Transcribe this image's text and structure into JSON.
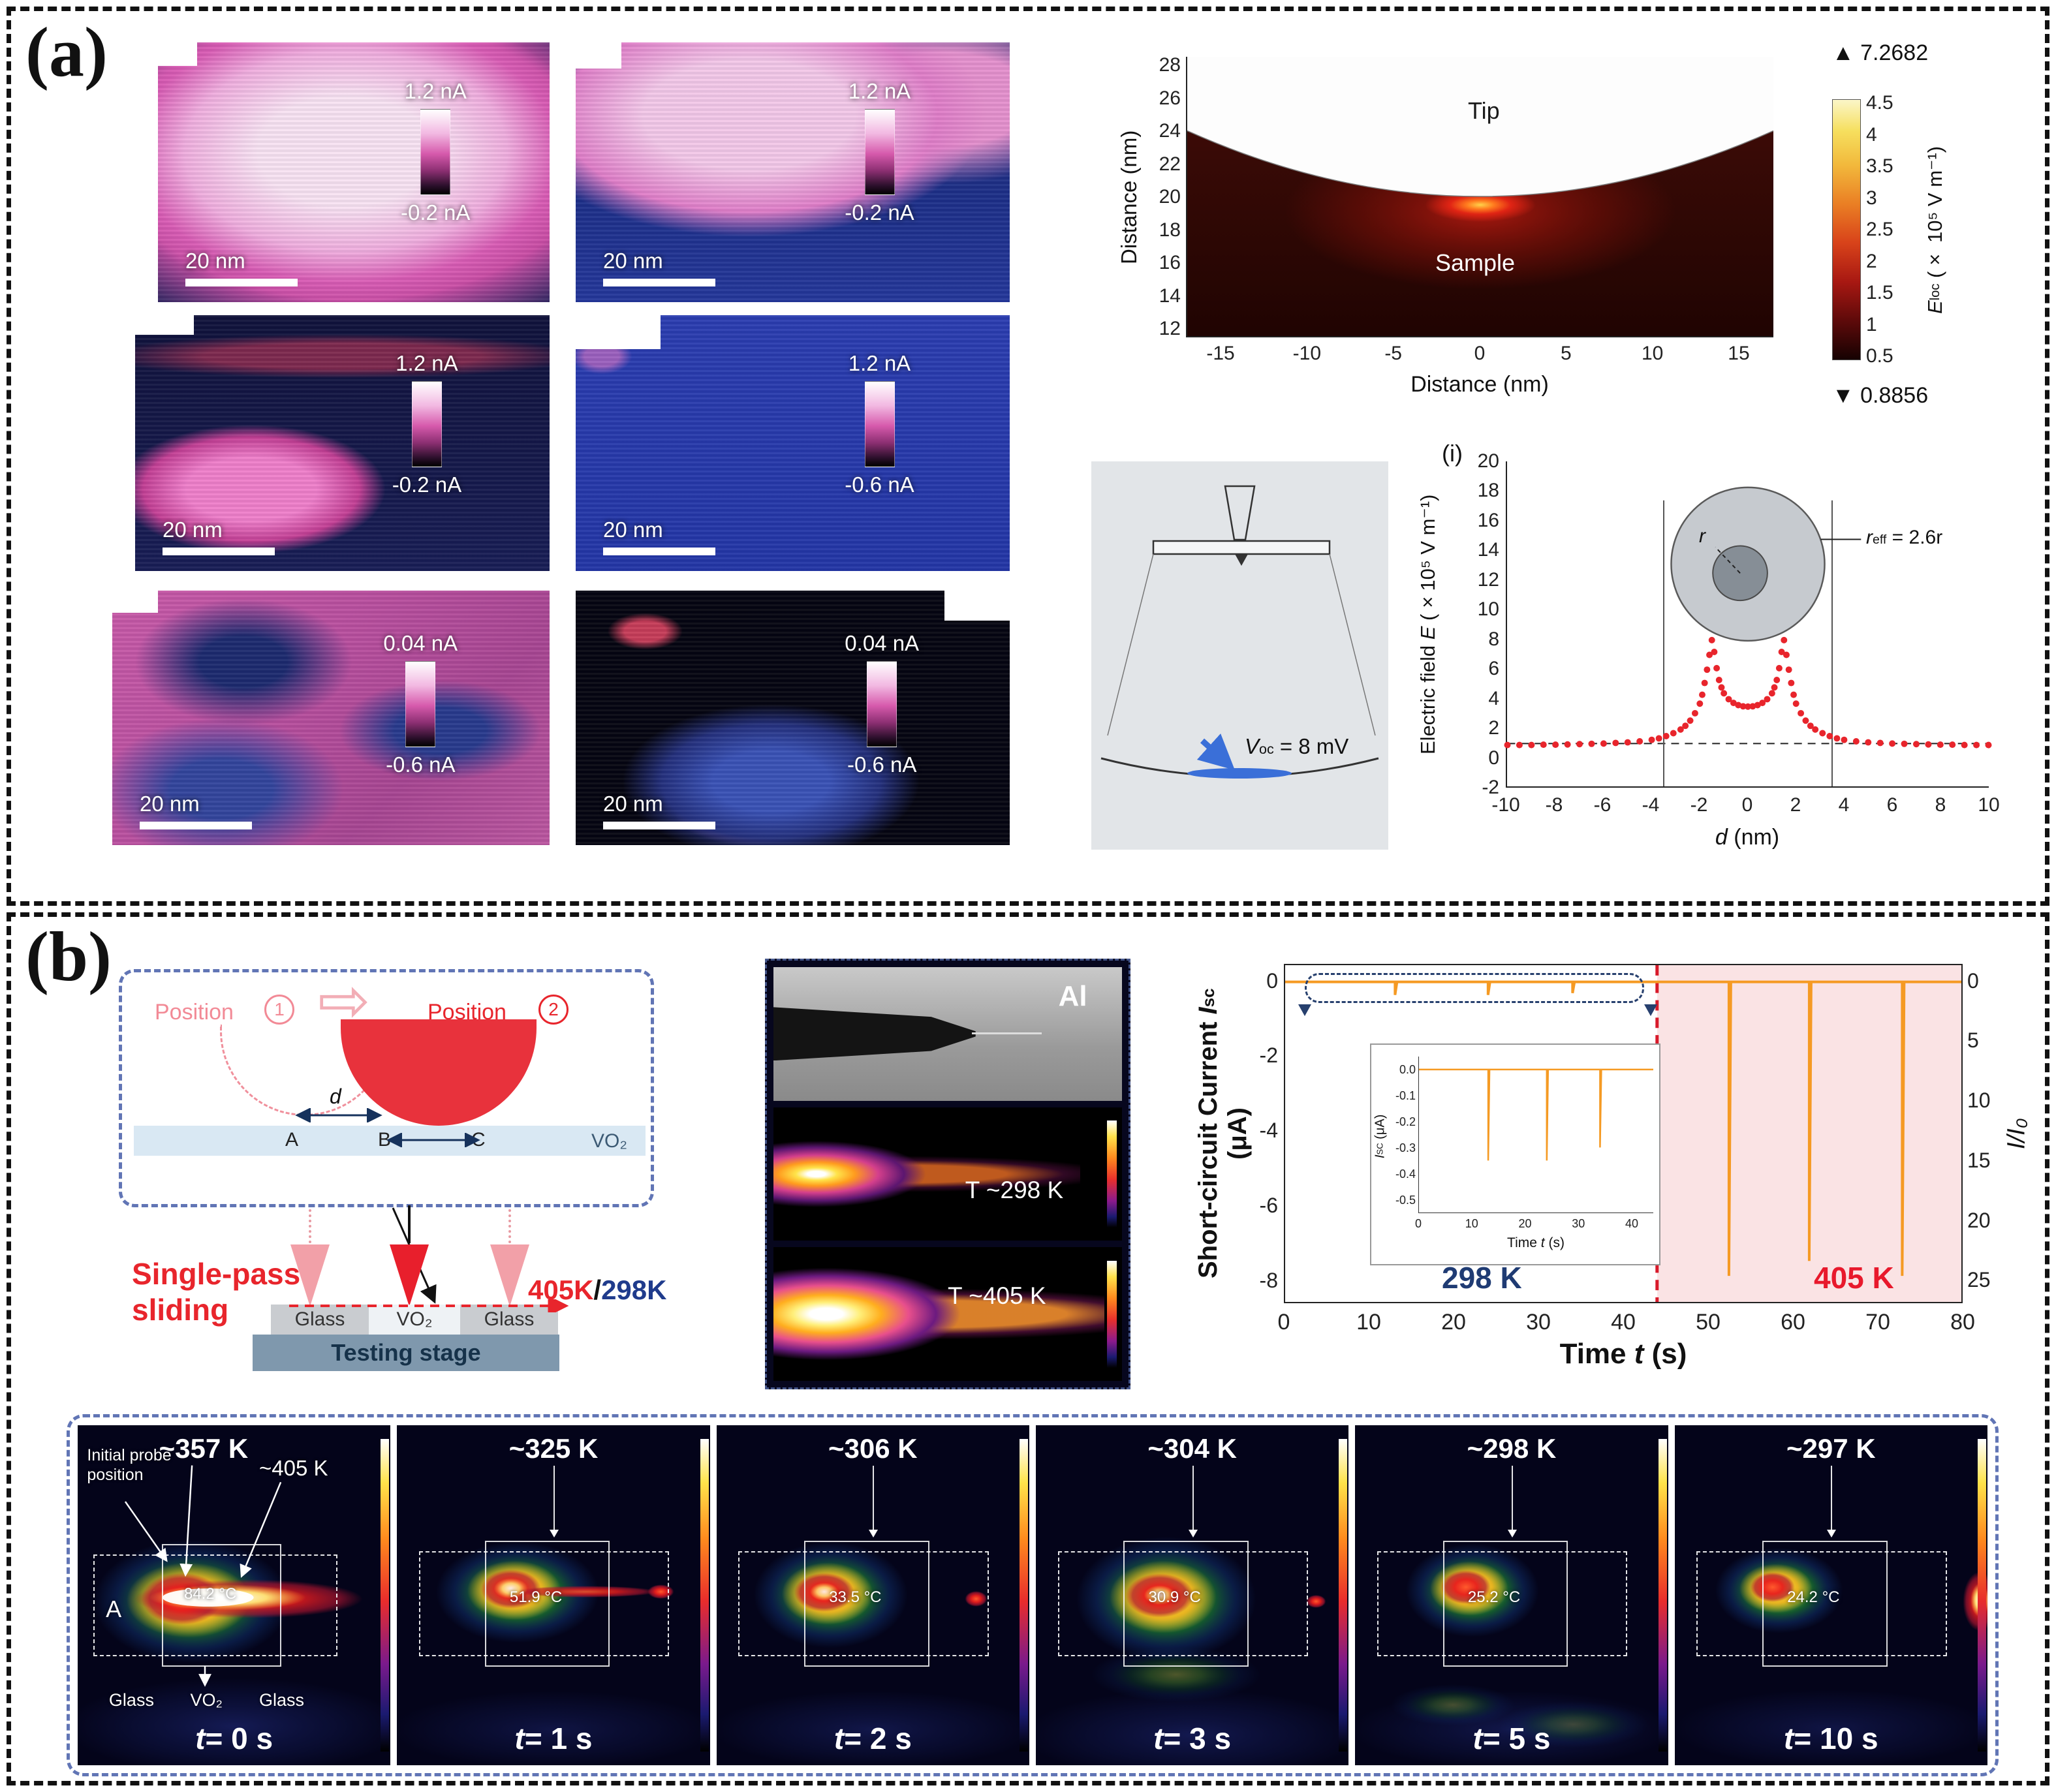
{
  "figure": {
    "panel_a_label": "(a)",
    "panel_b_label": "(b)"
  },
  "panel_a": {
    "maps": [
      {
        "max": "1.2 nA",
        "min": "-0.2 nA",
        "scalebar": "20 nm"
      },
      {
        "max": "1.2 nA",
        "min": "-0.2 nA",
        "scalebar": "20 nm"
      },
      {
        "max": "1.2 nA",
        "min": "-0.2 nA",
        "scalebar": "20 nm"
      },
      {
        "max": "1.2 nA",
        "min": "-0.6 nA",
        "scalebar": "20 nm"
      },
      {
        "max": "0.04 nA",
        "min": "-0.6 nA",
        "scalebar": "20 nm"
      },
      {
        "max": "0.04 nA",
        "min": "-0.6 nA",
        "scalebar": "20 nm"
      }
    ],
    "simulation": {
      "tip": "Tip",
      "sample": "Sample",
      "xlabel": "Distance (nm)",
      "ylabel": "Distance (nm)",
      "cbar_sym": "E",
      "cbar_sub": "loc",
      "cbar_rest": " (× 10⁵ V m⁻¹)",
      "max_value": "7.2682",
      "min_value": "0.8856"
    },
    "tip_schematic": {
      "v_sym": "V",
      "v_sub": "oc",
      "v_rest": " = 8 mV"
    },
    "efield": {
      "panel_label": "(i)",
      "ylabel_pre": "Electric field ",
      "ylabel_sym": "E",
      "ylabel_post": " (×10⁵ V m⁻¹)",
      "xlabel_sym": "d",
      "xlabel_post": " (nm)",
      "r_label": "r",
      "reff_sym": "r",
      "reff_sub": "eff",
      "reff_rest": " = 2.6r"
    }
  },
  "panel_b": {
    "schematic": {
      "position_label": "Position",
      "pos1": "1",
      "pos2": "2",
      "d_label": "d",
      "pt_a": "A",
      "pt_b": "B",
      "pt_c": "C",
      "film": "VO₂",
      "sliding_1": "Single-pass",
      "sliding_2": "sliding",
      "temp_hot": "405K",
      "temp_sep": "/",
      "temp_cold": "298K",
      "glass_left": "Glass",
      "vo2": "VO₂",
      "glass_right": "Glass",
      "stage": "Testing stage"
    },
    "thermal": {
      "al": "Al",
      "t_cold": "T ~298 K",
      "t_hot": "T ~405 K"
    },
    "frames": [
      {
        "temp": "~357 K",
        "t_sym": "t",
        "time": "= 0 s",
        "reading": "84.2 °C",
        "probe_note": "Initial probe position",
        "hot_note": "~405 K",
        "pt": "A",
        "glass_left": "Glass",
        "vo2": "VO₂",
        "glass_right": "Glass"
      },
      {
        "temp": "~325 K",
        "t_sym": "t",
        "time": "= 1 s",
        "reading": "51.9 °C"
      },
      {
        "temp": "~306 K",
        "t_sym": "t",
        "time": "= 2 s",
        "reading": "33.5 °C"
      },
      {
        "temp": "~304 K",
        "t_sym": "t",
        "time": "= 3 s",
        "reading": "30.9 °C"
      },
      {
        "temp": "~298 K",
        "t_sym": "t",
        "time": "= 5 s",
        "reading": "25.2 °C"
      },
      {
        "temp": "~297 K",
        "t_sym": "t",
        "time": "= 10 s",
        "reading": "24.2 °C"
      }
    ]
  },
  "chart_data": [
    {
      "id": "tip-field-map",
      "type": "heatmap",
      "xlabel": "Distance (nm)",
      "ylabel": "Distance (nm)",
      "xlim": [
        -17,
        17
      ],
      "ylim": [
        11.5,
        28.5
      ],
      "xticks": [
        -15,
        -10,
        -5,
        0,
        5,
        10,
        15
      ],
      "yticks": [
        28,
        26,
        24,
        22,
        20,
        18,
        16,
        14,
        12
      ],
      "regions": [
        "Tip",
        "Sample"
      ],
      "tip_sample_boundary_nm": 20,
      "hotspot": {
        "x": 0,
        "y": 19.8
      },
      "colorbar": {
        "label": "Eloc (× 10⁵ V m⁻¹)",
        "ticks": [
          4.5,
          4,
          3.5,
          3,
          2.5,
          2,
          1.5,
          1,
          0.5
        ],
        "max": 7.2682,
        "min": 0.8856
      },
      "legend": "off"
    },
    {
      "id": "efield-profile",
      "type": "scatter",
      "panel_label": "(i)",
      "xlabel": "d (nm)",
      "ylabel": "Electric field E (×10⁵ V m⁻¹)",
      "xlim": [
        -10,
        10
      ],
      "ylim": [
        -2,
        20
      ],
      "xticks": [
        -10,
        -8,
        -6,
        -4,
        -2,
        0,
        2,
        4,
        6,
        8,
        10
      ],
      "yticks": [
        20,
        18,
        16,
        14,
        12,
        10,
        8,
        6,
        4,
        2,
        0,
        -2
      ],
      "baseline": 0.9,
      "tip_edges": [
        -3.5,
        3.5
      ],
      "annotation": "reff = 2.6r",
      "marker_color": "#e8252c",
      "points": [
        [
          -10,
          0.8
        ],
        [
          -9.5,
          0.8
        ],
        [
          -9,
          0.8
        ],
        [
          -8.5,
          0.82
        ],
        [
          -8,
          0.82
        ],
        [
          -7.5,
          0.84
        ],
        [
          -7,
          0.86
        ],
        [
          -6.5,
          0.88
        ],
        [
          -6,
          0.9
        ],
        [
          -5.5,
          0.94
        ],
        [
          -5,
          0.98
        ],
        [
          -4.5,
          1.05
        ],
        [
          -4,
          1.15
        ],
        [
          -3.7,
          1.25
        ],
        [
          -3.4,
          1.4
        ],
        [
          -3.1,
          1.6
        ],
        [
          -2.8,
          1.85
        ],
        [
          -2.6,
          2.1
        ],
        [
          -2.4,
          2.45
        ],
        [
          -2.2,
          2.95
        ],
        [
          -2,
          3.6
        ],
        [
          -1.9,
          4.2
        ],
        [
          -1.8,
          5.0
        ],
        [
          -1.7,
          5.9
        ],
        [
          -1.6,
          6.9
        ],
        [
          -1.5,
          7.9
        ],
        [
          -1.4,
          7.1
        ],
        [
          -1.3,
          6.0
        ],
        [
          -1.2,
          5.2
        ],
        [
          -1.1,
          4.7
        ],
        [
          -1,
          4.3
        ],
        [
          -0.8,
          3.9
        ],
        [
          -0.6,
          3.65
        ],
        [
          -0.4,
          3.5
        ],
        [
          -0.2,
          3.42
        ],
        [
          0,
          3.4
        ],
        [
          0.2,
          3.42
        ],
        [
          0.4,
          3.5
        ],
        [
          0.6,
          3.65
        ],
        [
          0.8,
          3.9
        ],
        [
          1,
          4.3
        ],
        [
          1.1,
          4.7
        ],
        [
          1.2,
          5.2
        ],
        [
          1.3,
          6.0
        ],
        [
          1.4,
          7.1
        ],
        [
          1.5,
          7.9
        ],
        [
          1.6,
          6.9
        ],
        [
          1.7,
          5.9
        ],
        [
          1.8,
          5.0
        ],
        [
          1.9,
          4.2
        ],
        [
          2,
          3.6
        ],
        [
          2.2,
          2.95
        ],
        [
          2.4,
          2.45
        ],
        [
          2.6,
          2.1
        ],
        [
          2.8,
          1.85
        ],
        [
          3.1,
          1.6
        ],
        [
          3.4,
          1.4
        ],
        [
          3.7,
          1.25
        ],
        [
          4,
          1.15
        ],
        [
          4.5,
          1.05
        ],
        [
          5,
          0.98
        ],
        [
          5.5,
          0.94
        ],
        [
          6,
          0.9
        ],
        [
          6.5,
          0.88
        ],
        [
          7,
          0.86
        ],
        [
          7.5,
          0.84
        ],
        [
          8,
          0.82
        ],
        [
          8.5,
          0.82
        ],
        [
          9,
          0.8
        ],
        [
          9.5,
          0.8
        ],
        [
          10,
          0.8
        ]
      ]
    },
    {
      "id": "isc-time",
      "type": "line",
      "ylabel_pre": "Short-circuit Current ",
      "ylabel_sym": "I",
      "ylabel_sub": "sc",
      "ylabel_post": " (μA)",
      "right_label": "I/I₀",
      "xlabel_pre": "Time ",
      "xlabel_sym": "t",
      "xlabel_post": " (s)",
      "xlim": [
        0,
        80
      ],
      "ylim_left": [
        -8.6,
        0.45
      ],
      "xticks": [
        0,
        10,
        20,
        30,
        40,
        50,
        60,
        70,
        80
      ],
      "yticks_left": [
        0,
        -2,
        -4,
        -6,
        -8
      ],
      "yticks_right": [
        0,
        5,
        10,
        15,
        20,
        25
      ],
      "phase_change_t": 44,
      "phase_cold": "298 K",
      "phase_hot": "405 K",
      "line_color": "#f59a23",
      "spikes": [
        {
          "t": 13,
          "i": -0.35
        },
        {
          "t": 24,
          "i": -0.35
        },
        {
          "t": 34,
          "i": -0.3
        },
        {
          "t": 52.5,
          "i": -7.9
        },
        {
          "t": 62,
          "i": -7.5
        },
        {
          "t": 73,
          "i": -7.9
        }
      ],
      "inset": {
        "ylabel_sym": "I",
        "ylabel_sub": "SC",
        "ylabel_post": " (μA)",
        "xlabel_pre": "Time ",
        "xlabel_sym": "t",
        "xlabel_post": " (s)",
        "xlim": [
          0,
          44
        ],
        "ylim": [
          0.05,
          -0.55
        ],
        "xticks": [
          0,
          10,
          20,
          30,
          40
        ],
        "yticks": [
          "0.0",
          "-0.1",
          "-0.2",
          "-0.3",
          "-0.4",
          "-0.5"
        ],
        "spikes": [
          {
            "t": 13,
            "i": -0.35
          },
          {
            "t": 24,
            "i": -0.35
          },
          {
            "t": 34,
            "i": -0.3
          }
        ]
      }
    }
  ]
}
